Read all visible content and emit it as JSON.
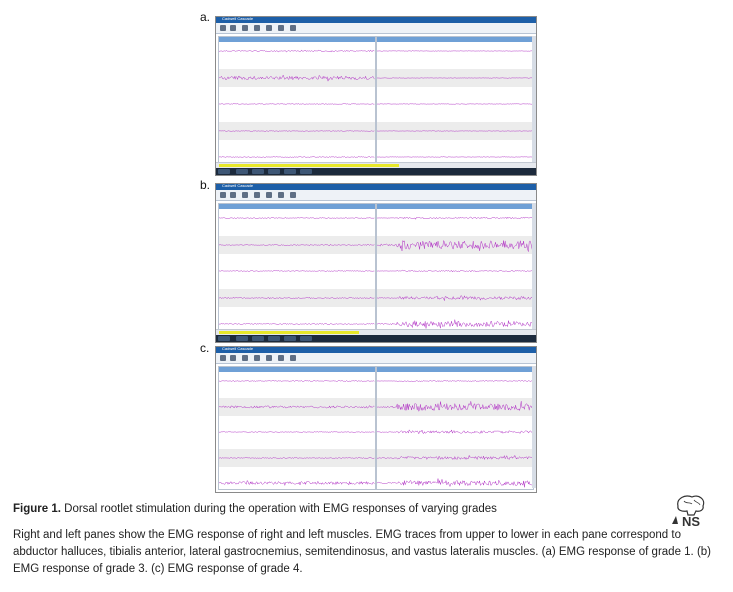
{
  "panels": [
    {
      "label": "a.",
      "app_title": "Cadwell Cascade",
      "grade": 1
    },
    {
      "label": "b.",
      "app_title": "Cadwell Cascade",
      "grade": 3
    },
    {
      "label": "c.",
      "app_title": "Cadwell Cascade",
      "grade": 4
    }
  ],
  "caption": {
    "title_bold": "Figure 1.",
    "title_rest": " Dorsal rootlet stimulation during the operation with EMG responses of varying grades",
    "body": "Right and left panes show the EMG response of right and left muscles. EMG traces from upper to lower in each pane correspond to abductor halluces, tibialis anterior, lateral gastrocnemius, semitendinosus, and vastus lateralis muscles. (a) EMG response of grade 1. (b) EMG response of grade 3. (c) EMG response of grade 4."
  },
  "logo": {
    "text": "NS",
    "icon": "brain-logo-icon"
  },
  "colors": {
    "trace": "#b02fc4",
    "titlebar": "#1d5fa8",
    "band": "#ececec"
  }
}
